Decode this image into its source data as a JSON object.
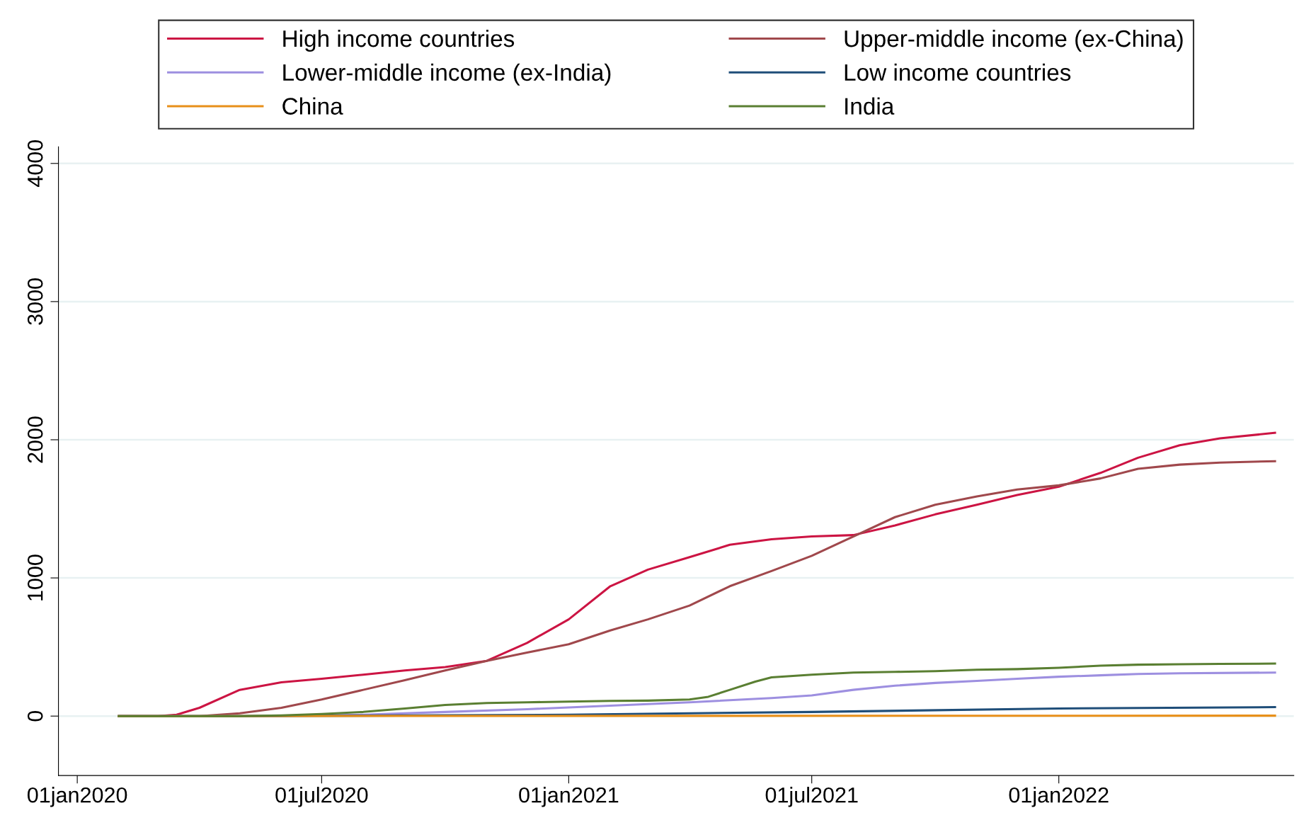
{
  "chart_data": {
    "type": "line",
    "xlim": [
      "2019-12-18",
      "2022-06-25"
    ],
    "xticks": [
      {
        "value": "2020-01-01",
        "label": "01jan2020"
      },
      {
        "value": "2020-07-01",
        "label": "01jul2020"
      },
      {
        "value": "2021-01-01",
        "label": "01jan2021"
      },
      {
        "value": "2021-07-01",
        "label": "01jul2021"
      },
      {
        "value": "2022-01-01",
        "label": "01jan2022"
      }
    ],
    "ylim": [
      -430,
      4120
    ],
    "yticks": [
      0,
      1000,
      2000,
      3000,
      4000
    ],
    "grid": "y",
    "legend": "top",
    "line_style": "solid",
    "marker": "none",
    "series": [
      {
        "name": "High income countries",
        "color": "#cc1443",
        "x": [
          "2020-02-01",
          "2020-03-01",
          "2020-03-15",
          "2020-04-01",
          "2020-05-01",
          "2020-06-01",
          "2020-07-01",
          "2020-08-01",
          "2020-09-01",
          "2020-10-01",
          "2020-11-01",
          "2020-12-01",
          "2021-01-01",
          "2021-02-01",
          "2021-03-01",
          "2021-04-01",
          "2021-05-01",
          "2021-06-01",
          "2021-07-01",
          "2021-08-01",
          "2021-09-01",
          "2021-10-01",
          "2021-11-01",
          "2021-12-01",
          "2022-01-01",
          "2022-02-01",
          "2022-03-01",
          "2022-04-01",
          "2022-05-01",
          "2022-06-11"
        ],
        "values": [
          0,
          0,
          10,
          60,
          190,
          245,
          270,
          300,
          330,
          355,
          400,
          530,
          700,
          940,
          1060,
          1150,
          1240,
          1280,
          1300,
          1310,
          1380,
          1460,
          1530,
          1600,
          1660,
          1760,
          1870,
          1960,
          2010,
          2050
        ]
      },
      {
        "name": "Upper-middle income (ex-China)",
        "color": "#a0484c",
        "x": [
          "2020-02-01",
          "2020-04-01",
          "2020-05-01",
          "2020-06-01",
          "2020-07-01",
          "2020-08-01",
          "2020-09-01",
          "2020-10-01",
          "2020-11-01",
          "2020-12-01",
          "2021-01-01",
          "2021-02-01",
          "2021-03-01",
          "2021-04-01",
          "2021-05-01",
          "2021-06-01",
          "2021-07-01",
          "2021-08-01",
          "2021-09-01",
          "2021-10-01",
          "2021-11-01",
          "2021-12-01",
          "2022-01-01",
          "2022-02-01",
          "2022-03-01",
          "2022-04-01",
          "2022-05-01",
          "2022-06-11"
        ],
        "values": [
          0,
          0,
          20,
          60,
          120,
          190,
          260,
          330,
          400,
          460,
          520,
          620,
          700,
          800,
          940,
          1050,
          1160,
          1300,
          1440,
          1530,
          1590,
          1640,
          1670,
          1720,
          1790,
          1820,
          1835,
          1845
        ]
      },
      {
        "name": "Lower-middle income (ex-India)",
        "color": "#9d8fe0",
        "x": [
          "2020-02-01",
          "2020-06-01",
          "2020-08-01",
          "2020-10-01",
          "2020-12-01",
          "2021-02-01",
          "2021-04-01",
          "2021-06-01",
          "2021-07-01",
          "2021-08-01",
          "2021-09-01",
          "2021-10-01",
          "2021-11-01",
          "2021-12-01",
          "2022-01-01",
          "2022-02-01",
          "2022-03-01",
          "2022-04-01",
          "2022-06-11"
        ],
        "values": [
          0,
          0,
          10,
          30,
          50,
          75,
          100,
          130,
          150,
          190,
          220,
          240,
          255,
          270,
          285,
          295,
          305,
          310,
          315
        ]
      },
      {
        "name": "Low income countries",
        "color": "#1f4e79",
        "x": [
          "2020-02-01",
          "2020-05-01",
          "2020-08-01",
          "2021-01-01",
          "2021-07-01",
          "2022-01-01",
          "2022-06-11"
        ],
        "values": [
          0,
          0,
          3,
          10,
          30,
          55,
          65
        ]
      },
      {
        "name": "China",
        "color": "#e8901a",
        "x": [
          "2020-02-01",
          "2022-06-11"
        ],
        "values": [
          0,
          3
        ]
      },
      {
        "name": "India",
        "color": "#5a7f32",
        "x": [
          "2020-02-01",
          "2020-05-01",
          "2020-06-01",
          "2020-07-01",
          "2020-08-01",
          "2020-09-01",
          "2020-10-01",
          "2020-11-01",
          "2020-12-01",
          "2021-01-01",
          "2021-02-01",
          "2021-03-01",
          "2021-04-01",
          "2021-04-15",
          "2021-05-01",
          "2021-05-20",
          "2021-06-01",
          "2021-07-01",
          "2021-08-01",
          "2021-09-01",
          "2021-10-01",
          "2021-11-01",
          "2021-12-01",
          "2022-01-01",
          "2022-02-01",
          "2022-03-01",
          "2022-04-01",
          "2022-05-01",
          "2022-06-11"
        ],
        "values": [
          0,
          0,
          5,
          15,
          30,
          55,
          80,
          95,
          100,
          105,
          110,
          112,
          120,
          140,
          190,
          250,
          280,
          300,
          315,
          320,
          325,
          335,
          340,
          350,
          365,
          372,
          375,
          378,
          380
        ]
      }
    ]
  }
}
